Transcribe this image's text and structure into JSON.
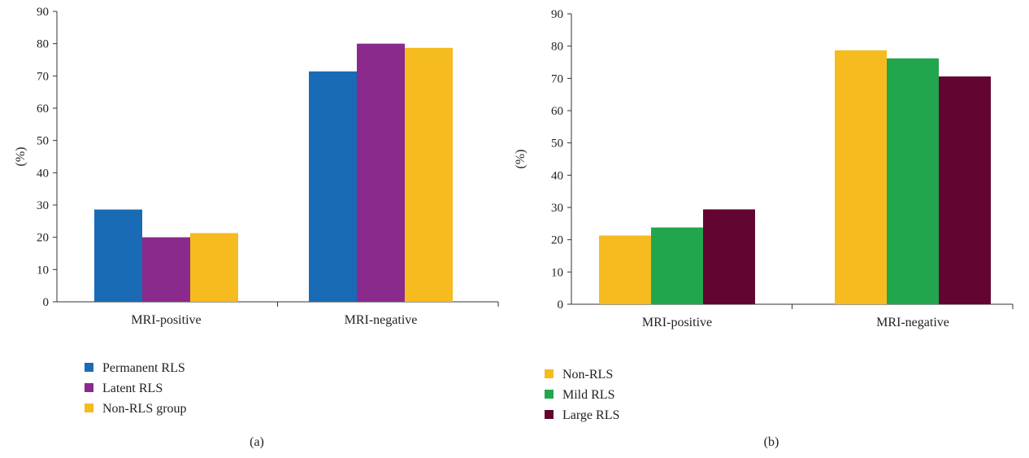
{
  "chart_data": [
    {
      "type": "bar",
      "panel_label": "(a)",
      "categories": [
        "MRI-positive",
        "MRI-negative"
      ],
      "series": [
        {
          "name": "Permanent RLS",
          "values": [
            28.6,
            71.4
          ],
          "color": "#1a6bb5"
        },
        {
          "name": "Latent RLS",
          "values": [
            20.0,
            80.0
          ],
          "color": "#8a2a8c"
        },
        {
          "name": "Non-RLS group",
          "values": [
            21.3,
            78.7
          ],
          "color": "#f5bb1f"
        }
      ],
      "ylabel": "(%)",
      "ylim": [
        0,
        90
      ],
      "yticks": [
        0,
        10,
        20,
        30,
        40,
        50,
        60,
        70,
        80,
        90
      ],
      "grid": false,
      "legend_position": "bottom-left"
    },
    {
      "type": "bar",
      "panel_label": "(b)",
      "categories": [
        "MRI-positive",
        "MRI-negative"
      ],
      "series": [
        {
          "name": "Non-RLS",
          "values": [
            21.3,
            78.7
          ],
          "color": "#f5bb1f"
        },
        {
          "name": "Mild RLS",
          "values": [
            23.8,
            76.2
          ],
          "color": "#22a64d"
        },
        {
          "name": "Large RLS",
          "values": [
            29.4,
            70.6
          ],
          "color": "#620530"
        }
      ],
      "ylabel": "(%)",
      "ylim": [
        0,
        90
      ],
      "yticks": [
        0,
        10,
        20,
        30,
        40,
        50,
        60,
        70,
        80,
        90
      ],
      "grid": false,
      "legend_position": "bottom-left"
    }
  ]
}
